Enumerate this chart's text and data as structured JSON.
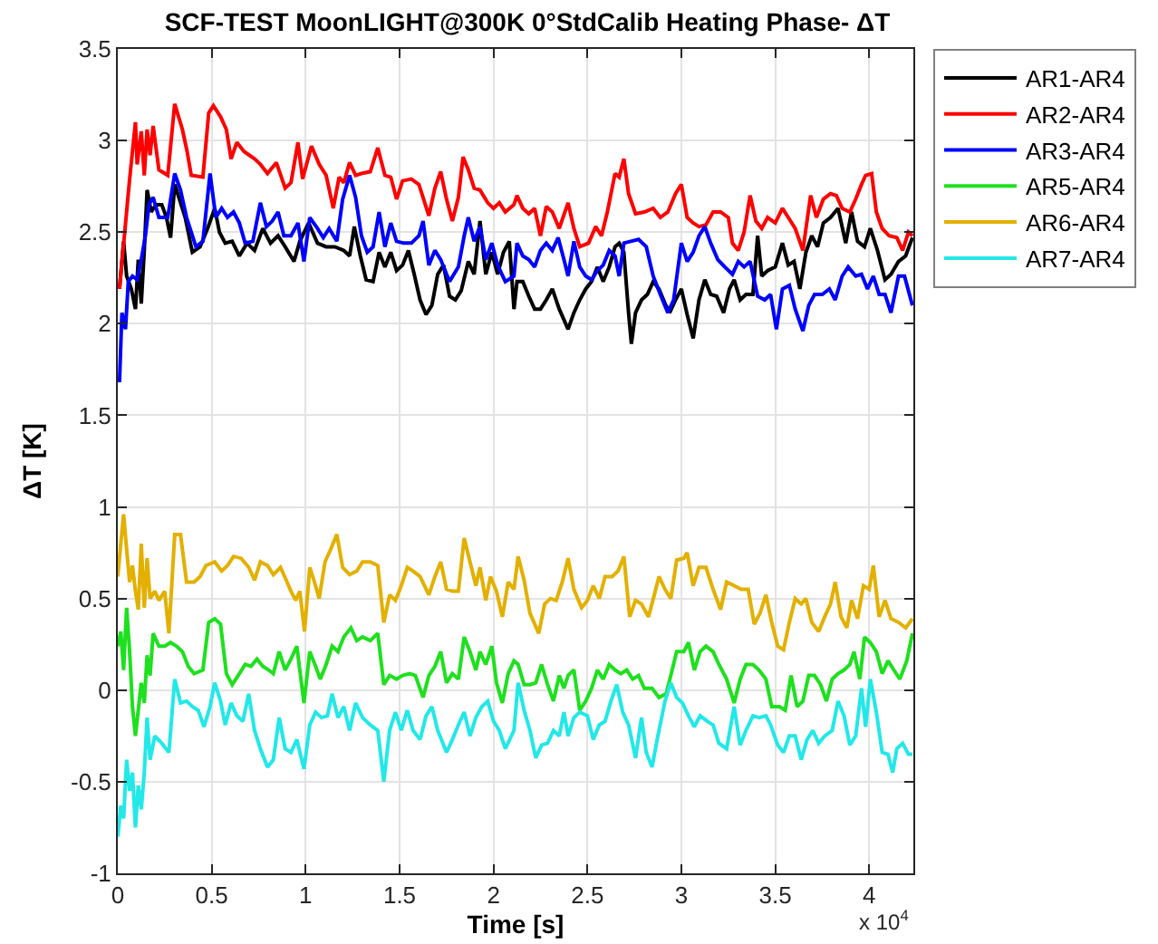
{
  "chart_data": {
    "type": "line",
    "title": "SCF-TEST MoonLIGHT@300K 0°StdCalib Heating Phase- ΔT",
    "xlabel": "Time [s]",
    "ylabel": "ΔT [K]",
    "annotations": [
      "x 10$^{4}$"
    ],
    "xlim": [
      0,
      4.235
    ],
    "ylim": [
      -1,
      3.5
    ],
    "xticks": [
      0,
      0.5,
      1,
      1.5,
      2,
      2.5,
      3,
      3.5,
      4
    ],
    "yticks": [
      -1,
      -0.5,
      0,
      0.5,
      1,
      1.5,
      2,
      2.5,
      3,
      3.5
    ],
    "grid": true,
    "legend": "top right",
    "line_style": "solid",
    "series": [
      {
        "name": "AR1-AR4",
        "color": "#000000",
        "x": [
          0.009,
          0.031,
          0.047,
          0.072,
          0.094,
          0.109,
          0.125,
          0.141,
          0.156,
          0.178,
          0.203,
          0.234,
          0.259,
          0.281,
          0.303,
          0.328,
          0.359,
          0.397,
          0.438,
          0.478,
          0.516,
          0.541,
          0.572,
          0.609,
          0.647,
          0.688,
          0.728,
          0.772,
          0.813,
          0.853,
          0.891,
          0.938,
          0.969,
          1.016,
          1.063,
          1.109,
          1.156,
          1.203,
          1.234,
          1.259,
          1.291,
          1.322,
          1.359,
          1.391,
          1.422,
          1.453,
          1.484,
          1.516,
          1.547,
          1.578,
          1.609,
          1.641,
          1.672,
          1.703,
          1.734,
          1.766,
          1.797,
          1.828,
          1.866,
          1.897,
          1.928,
          1.959,
          1.991,
          2.022,
          2.053,
          2.084,
          2.109,
          2.125,
          2.156,
          2.188,
          2.219,
          2.25,
          2.281,
          2.313,
          2.35,
          2.397,
          2.428,
          2.459,
          2.491,
          2.522,
          2.553,
          2.584,
          2.616,
          2.647,
          2.669,
          2.694,
          2.719,
          2.734,
          2.756,
          2.788,
          2.819,
          2.85,
          2.881,
          2.913,
          2.938,
          2.969,
          3,
          3.031,
          3.063,
          3.094,
          3.125,
          3.156,
          3.188,
          3.225,
          3.256,
          3.281,
          3.313,
          3.344,
          3.381,
          3.406,
          3.428,
          3.459,
          3.5,
          3.538,
          3.569,
          3.6,
          3.631,
          3.663,
          3.694,
          3.725,
          3.756,
          3.794,
          3.834,
          3.875,
          3.906,
          3.938,
          3.975,
          4.006,
          4.044,
          4.084,
          4.116,
          4.156,
          4.194,
          4.23
        ],
        "values": [
          2.19,
          2.45,
          2.26,
          2.19,
          2.08,
          2.35,
          2.11,
          2.4,
          2.73,
          2.61,
          2.65,
          2.65,
          2.58,
          2.47,
          2.76,
          2.68,
          2.58,
          2.39,
          2.42,
          2.52,
          2.63,
          2.5,
          2.44,
          2.45,
          2.37,
          2.44,
          2.4,
          2.52,
          2.44,
          2.48,
          2.42,
          2.34,
          2.45,
          2.55,
          2.44,
          2.42,
          2.42,
          2.4,
          2.37,
          2.53,
          2.37,
          2.24,
          2.23,
          2.39,
          2.31,
          2.39,
          2.29,
          2.32,
          2.4,
          2.27,
          2.13,
          2.05,
          2.1,
          2.27,
          2.32,
          2.15,
          2.13,
          2.18,
          2.34,
          2.27,
          2.56,
          2.27,
          2.39,
          2.27,
          2.39,
          2.45,
          2.08,
          2.23,
          2.23,
          2.15,
          2.08,
          2.08,
          2.13,
          2.19,
          2.08,
          1.97,
          2.06,
          2.13,
          2.19,
          2.23,
          2.31,
          2.23,
          2.31,
          2.42,
          2.44,
          2.39,
          2.06,
          1.89,
          2.06,
          2.13,
          2.16,
          2.23,
          2.19,
          2.11,
          2.06,
          2.13,
          2.19,
          2.05,
          1.92,
          2.13,
          2.24,
          2.16,
          2.15,
          2.06,
          2.19,
          2.24,
          2.13,
          2.16,
          2.16,
          2.48,
          2.26,
          2.29,
          2.31,
          2.44,
          2.32,
          2.34,
          2.19,
          2.39,
          2.48,
          2.42,
          2.55,
          2.58,
          2.63,
          2.44,
          2.61,
          2.45,
          2.42,
          2.52,
          2.4,
          2.24,
          2.27,
          2.34,
          2.37,
          2.47
        ]
      },
      {
        "name": "AR2-AR4",
        "color": "#ff0000",
        "x": [
          0.009,
          0.063,
          0.094,
          0.103,
          0.125,
          0.141,
          0.156,
          0.172,
          0.188,
          0.219,
          0.266,
          0.303,
          0.344,
          0.369,
          0.391,
          0.453,
          0.484,
          0.509,
          0.547,
          0.578,
          0.603,
          0.634,
          0.672,
          0.728,
          0.759,
          0.797,
          0.844,
          0.891,
          0.922,
          0.959,
          0.984,
          1.031,
          1.072,
          1.109,
          1.147,
          1.178,
          1.203,
          1.234,
          1.266,
          1.297,
          1.344,
          1.384,
          1.422,
          1.453,
          1.484,
          1.516,
          1.563,
          1.603,
          1.656,
          1.688,
          1.719,
          1.75,
          1.781,
          1.813,
          1.838,
          1.866,
          1.897,
          1.928,
          1.969,
          2,
          2.031,
          2.063,
          2.109,
          2.125,
          2.156,
          2.188,
          2.219,
          2.25,
          2.281,
          2.313,
          2.35,
          2.397,
          2.428,
          2.459,
          2.506,
          2.544,
          2.575,
          2.606,
          2.647,
          2.669,
          2.694,
          2.719,
          2.756,
          2.803,
          2.85,
          2.888,
          2.928,
          2.969,
          3,
          3.031,
          3.063,
          3.094,
          3.131,
          3.169,
          3.209,
          3.25,
          3.272,
          3.303,
          3.334,
          3.366,
          3.397,
          3.428,
          3.459,
          3.5,
          3.538,
          3.569,
          3.606,
          3.647,
          3.688,
          3.719,
          3.756,
          3.794,
          3.825,
          3.856,
          3.897,
          3.928,
          3.959,
          3.981,
          4.013,
          4.038,
          4.069,
          4.106,
          4.147,
          4.178,
          4.209,
          4.23
        ],
        "values": [
          2.19,
          2.79,
          3.1,
          2.87,
          3.05,
          2.81,
          3.06,
          2.92,
          3.08,
          2.84,
          2.81,
          3.2,
          3.06,
          2.94,
          2.81,
          2.8,
          3.15,
          3.19,
          3.13,
          3.06,
          2.9,
          2.99,
          2.94,
          2.9,
          2.87,
          2.82,
          2.88,
          2.74,
          2.77,
          2.99,
          2.79,
          2.97,
          2.87,
          2.81,
          2.63,
          2.8,
          2.77,
          2.88,
          2.81,
          2.82,
          2.83,
          2.96,
          2.81,
          2.8,
          2.68,
          2.78,
          2.79,
          2.76,
          2.59,
          2.74,
          2.83,
          2.68,
          2.56,
          2.69,
          2.91,
          2.84,
          2.74,
          2.73,
          2.66,
          2.63,
          2.66,
          2.61,
          2.65,
          2.7,
          2.63,
          2.6,
          2.63,
          2.48,
          2.64,
          2.61,
          2.52,
          2.66,
          2.52,
          2.42,
          2.44,
          2.53,
          2.48,
          2.61,
          2.82,
          2.8,
          2.9,
          2.71,
          2.6,
          2.61,
          2.63,
          2.58,
          2.61,
          2.71,
          2.76,
          2.58,
          2.55,
          2.53,
          2.54,
          2.61,
          2.61,
          2.58,
          2.44,
          2.4,
          2.5,
          2.7,
          2.56,
          2.52,
          2.58,
          2.55,
          2.63,
          2.58,
          2.52,
          2.4,
          2.7,
          2.58,
          2.68,
          2.71,
          2.7,
          2.63,
          2.61,
          2.68,
          2.76,
          2.81,
          2.82,
          2.61,
          2.52,
          2.48,
          2.47,
          2.4,
          2.5,
          2.48
        ]
      },
      {
        "name": "AR3-AR4",
        "color": "#0000ff",
        "x": [
          0.009,
          0.022,
          0.041,
          0.056,
          0.078,
          0.103,
          0.125,
          0.147,
          0.166,
          0.188,
          0.219,
          0.266,
          0.303,
          0.334,
          0.366,
          0.416,
          0.453,
          0.491,
          0.522,
          0.553,
          0.584,
          0.616,
          0.647,
          0.678,
          0.719,
          0.759,
          0.791,
          0.822,
          0.853,
          0.884,
          0.922,
          0.959,
          0.991,
          1.022,
          1.063,
          1.094,
          1.125,
          1.166,
          1.197,
          1.234,
          1.266,
          1.297,
          1.328,
          1.359,
          1.391,
          1.422,
          1.453,
          1.484,
          1.522,
          1.563,
          1.603,
          1.625,
          1.656,
          1.688,
          1.719,
          1.766,
          1.813,
          1.844,
          1.866,
          1.897,
          1.928,
          1.959,
          1.991,
          2.022,
          2.063,
          2.109,
          2.125,
          2.156,
          2.188,
          2.219,
          2.25,
          2.281,
          2.313,
          2.344,
          2.375,
          2.397,
          2.428,
          2.459,
          2.491,
          2.522,
          2.553,
          2.584,
          2.616,
          2.647,
          2.669,
          2.694,
          2.731,
          2.772,
          2.813,
          2.85,
          2.888,
          2.928,
          2.959,
          3,
          3.031,
          3.063,
          3.094,
          3.125,
          3.156,
          3.194,
          3.231,
          3.272,
          3.303,
          3.334,
          3.366,
          3.406,
          3.444,
          3.475,
          3.506,
          3.538,
          3.575,
          3.606,
          3.647,
          3.678,
          3.709,
          3.75,
          3.788,
          3.819,
          3.856,
          3.888,
          3.928,
          3.959,
          3.991,
          4.022,
          4.053,
          4.084,
          4.116,
          4.156,
          4.188,
          4.23
        ],
        "values": [
          1.68,
          2.06,
          1.97,
          2.23,
          2.26,
          2.24,
          2.35,
          2.48,
          2.65,
          2.69,
          2.58,
          2.58,
          2.82,
          2.73,
          2.58,
          2.42,
          2.45,
          2.82,
          2.58,
          2.63,
          2.58,
          2.61,
          2.55,
          2.44,
          2.45,
          2.66,
          2.53,
          2.56,
          2.61,
          2.48,
          2.48,
          2.55,
          2.34,
          2.58,
          2.52,
          2.47,
          2.52,
          2.45,
          2.68,
          2.81,
          2.69,
          2.48,
          2.39,
          2.42,
          2.61,
          2.42,
          2.55,
          2.45,
          2.44,
          2.44,
          2.48,
          2.56,
          2.32,
          2.4,
          2.35,
          2.23,
          2.31,
          2.48,
          2.58,
          2.45,
          2.53,
          2.35,
          2.44,
          2.32,
          2.23,
          2.26,
          2.44,
          2.37,
          2.35,
          2.31,
          2.4,
          2.44,
          2.4,
          2.47,
          2.35,
          2.26,
          2.45,
          2.31,
          2.26,
          2.24,
          2.29,
          2.32,
          2.4,
          2.37,
          2.26,
          2.44,
          2.45,
          2.46,
          2.42,
          2.26,
          2.16,
          2.06,
          2.13,
          2.44,
          2.34,
          2.39,
          2.48,
          2.53,
          2.44,
          2.35,
          2.31,
          2.27,
          2.34,
          2.31,
          2.34,
          2.15,
          2.13,
          2.16,
          1.97,
          2.19,
          2.21,
          2.08,
          1.96,
          2.1,
          2.16,
          2.16,
          2.19,
          2.13,
          2.26,
          2.31,
          2.26,
          2.27,
          2.19,
          2.26,
          2.16,
          2.16,
          2.06,
          2.26,
          2.26,
          2.1
        ]
      },
      {
        "name": "AR5-AR4",
        "color": "#1ee01e",
        "x": [
          0,
          0.016,
          0.031,
          0.047,
          0.063,
          0.078,
          0.094,
          0.109,
          0.125,
          0.141,
          0.156,
          0.172,
          0.188,
          0.219,
          0.25,
          0.281,
          0.313,
          0.344,
          0.375,
          0.406,
          0.453,
          0.484,
          0.516,
          0.547,
          0.578,
          0.609,
          0.647,
          0.678,
          0.709,
          0.741,
          0.772,
          0.803,
          0.828,
          0.859,
          0.891,
          0.922,
          0.953,
          0.991,
          1.022,
          1.053,
          1.078,
          1.109,
          1.141,
          1.172,
          1.203,
          1.241,
          1.272,
          1.303,
          1.344,
          1.384,
          1.416,
          1.447,
          1.484,
          1.516,
          1.553,
          1.584,
          1.625,
          1.656,
          1.688,
          1.719,
          1.75,
          1.781,
          1.813,
          1.844,
          1.875,
          1.906,
          1.928,
          1.959,
          1.991,
          2.016,
          2.047,
          2.078,
          2.109,
          2.131,
          2.163,
          2.194,
          2.225,
          2.256,
          2.288,
          2.319,
          2.35,
          2.375,
          2.397,
          2.428,
          2.459,
          2.491,
          2.522,
          2.553,
          2.584,
          2.616,
          2.647,
          2.678,
          2.709,
          2.741,
          2.772,
          2.803,
          2.844,
          2.881,
          2.919,
          2.944,
          2.975,
          3.013,
          3.038,
          3.069,
          3.1,
          3.131,
          3.169,
          3.2,
          3.241,
          3.281,
          3.313,
          3.344,
          3.381,
          3.413,
          3.45,
          3.481,
          3.522,
          3.553,
          3.584,
          3.616,
          3.647,
          3.678,
          3.709,
          3.741,
          3.772,
          3.803,
          3.834,
          3.866,
          3.897,
          3.919,
          3.95,
          3.975,
          4.006,
          4.038,
          4.069,
          4.1,
          4.131,
          4.163,
          4.2,
          4.23
        ],
        "values": [
          0.24,
          0.32,
          0.11,
          0.45,
          0.21,
          -0.09,
          -0.25,
          -0.11,
          0.04,
          -0.07,
          0.19,
          0.08,
          0.31,
          0.24,
          0.24,
          0.26,
          0.24,
          0.21,
          0.13,
          0.09,
          0.11,
          0.37,
          0.39,
          0.36,
          0.09,
          0.03,
          0.09,
          0.14,
          0.13,
          0.17,
          0.13,
          0.11,
          0.09,
          0.21,
          0.11,
          0.17,
          0.24,
          -0.07,
          0.21,
          0.13,
          0.06,
          0.14,
          0.24,
          0.21,
          0.29,
          0.34,
          0.27,
          0.29,
          0.27,
          0.31,
          0.03,
          0.08,
          0.06,
          0.08,
          0.09,
          0.08,
          -0.04,
          0.08,
          0.13,
          0.21,
          0.04,
          0.09,
          0.06,
          0.29,
          0.21,
          0.11,
          0.21,
          0.14,
          0.24,
          0.04,
          -0.07,
          0.09,
          0.16,
          0.14,
          0.03,
          0.03,
          0.04,
          0.14,
          0.03,
          -0.06,
          0.08,
          0.01,
          0.08,
          0.11,
          -0.11,
          -0.06,
          0.01,
          0.11,
          0.06,
          0.14,
          0.11,
          0.09,
          0.11,
          0.06,
          0.08,
          0.01,
          0.01,
          -0.04,
          -0.02,
          0.08,
          0.21,
          0.21,
          0.26,
          0.11,
          0.21,
          0.24,
          0.21,
          0.14,
          0.06,
          -0.07,
          0.06,
          0.14,
          0.14,
          0.11,
          0.06,
          -0.09,
          -0.09,
          -0.11,
          0.08,
          -0.09,
          -0.06,
          0.08,
          0.08,
          0.03,
          -0.06,
          0.06,
          0.09,
          0.11,
          0.14,
          0.21,
          0.06,
          0.29,
          0.26,
          0.21,
          0.09,
          0.16,
          0.11,
          0.06,
          0.16,
          0.31
        ]
      },
      {
        "name": "AR6-AR4",
        "color": "#e3b000",
        "x": [
          0,
          0.016,
          0.031,
          0.047,
          0.063,
          0.078,
          0.094,
          0.109,
          0.125,
          0.141,
          0.156,
          0.172,
          0.197,
          0.219,
          0.25,
          0.272,
          0.303,
          0.334,
          0.366,
          0.406,
          0.438,
          0.469,
          0.516,
          0.553,
          0.584,
          0.616,
          0.656,
          0.697,
          0.728,
          0.759,
          0.797,
          0.828,
          0.866,
          0.897,
          0.922,
          0.947,
          0.969,
          0.994,
          1.022,
          1.047,
          1.072,
          1.103,
          1.134,
          1.166,
          1.197,
          1.234,
          1.272,
          1.303,
          1.344,
          1.384,
          1.416,
          1.447,
          1.478,
          1.509,
          1.541,
          1.572,
          1.609,
          1.656,
          1.688,
          1.719,
          1.75,
          1.781,
          1.813,
          1.844,
          1.875,
          1.906,
          1.928,
          1.959,
          1.984,
          2.016,
          2.047,
          2.078,
          2.109,
          2.131,
          2.163,
          2.194,
          2.241,
          2.272,
          2.303,
          2.334,
          2.366,
          2.397,
          2.428,
          2.469,
          2.5,
          2.531,
          2.563,
          2.594,
          2.631,
          2.663,
          2.694,
          2.725,
          2.756,
          2.788,
          2.825,
          2.856,
          2.881,
          2.913,
          2.944,
          2.975,
          3.013,
          3.031,
          3.063,
          3.094,
          3.131,
          3.169,
          3.209,
          3.241,
          3.281,
          3.319,
          3.356,
          3.388,
          3.419,
          3.45,
          3.481,
          3.513,
          3.544,
          3.575,
          3.606,
          3.638,
          3.663,
          3.694,
          3.731,
          3.763,
          3.794,
          3.819,
          3.85,
          3.881,
          3.906,
          3.938,
          3.969,
          4,
          4.022,
          4.053,
          4.084,
          4.116,
          4.156,
          4.194,
          4.23
        ],
        "values": [
          0.62,
          0.8,
          0.96,
          0.77,
          0.59,
          0.68,
          0.54,
          0.44,
          0.8,
          0.45,
          0.72,
          0.5,
          0.54,
          0.49,
          0.54,
          0.31,
          0.85,
          0.85,
          0.59,
          0.59,
          0.62,
          0.68,
          0.7,
          0.65,
          0.68,
          0.73,
          0.72,
          0.67,
          0.6,
          0.7,
          0.68,
          0.63,
          0.67,
          0.6,
          0.54,
          0.49,
          0.54,
          0.32,
          0.67,
          0.59,
          0.5,
          0.7,
          0.77,
          0.85,
          0.67,
          0.63,
          0.65,
          0.7,
          0.7,
          0.68,
          0.37,
          0.52,
          0.49,
          0.57,
          0.67,
          0.65,
          0.62,
          0.52,
          0.62,
          0.7,
          0.55,
          0.54,
          0.54,
          0.83,
          0.7,
          0.57,
          0.67,
          0.49,
          0.62,
          0.54,
          0.4,
          0.59,
          0.55,
          0.73,
          0.6,
          0.42,
          0.31,
          0.47,
          0.5,
          0.49,
          0.59,
          0.72,
          0.55,
          0.45,
          0.49,
          0.57,
          0.5,
          0.62,
          0.62,
          0.65,
          0.73,
          0.4,
          0.49,
          0.47,
          0.4,
          0.52,
          0.62,
          0.55,
          0.5,
          0.71,
          0.72,
          0.75,
          0.57,
          0.67,
          0.67,
          0.55,
          0.44,
          0.59,
          0.57,
          0.55,
          0.55,
          0.36,
          0.42,
          0.52,
          0.37,
          0.24,
          0.22,
          0.37,
          0.5,
          0.47,
          0.5,
          0.37,
          0.32,
          0.4,
          0.47,
          0.59,
          0.4,
          0.34,
          0.49,
          0.39,
          0.57,
          0.55,
          0.68,
          0.4,
          0.49,
          0.39,
          0.37,
          0.34,
          0.39
        ]
      },
      {
        "name": "AR7-AR4",
        "color": "#22e8e8",
        "x": [
          0,
          0.016,
          0.031,
          0.047,
          0.063,
          0.078,
          0.094,
          0.109,
          0.125,
          0.141,
          0.156,
          0.172,
          0.197,
          0.234,
          0.272,
          0.303,
          0.334,
          0.366,
          0.397,
          0.428,
          0.459,
          0.491,
          0.516,
          0.547,
          0.572,
          0.603,
          0.634,
          0.666,
          0.697,
          0.728,
          0.759,
          0.797,
          0.828,
          0.859,
          0.891,
          0.922,
          0.953,
          0.991,
          1.022,
          1.053,
          1.084,
          1.116,
          1.141,
          1.172,
          1.203,
          1.234,
          1.266,
          1.303,
          1.344,
          1.384,
          1.416,
          1.447,
          1.478,
          1.509,
          1.541,
          1.572,
          1.609,
          1.641,
          1.672,
          1.703,
          1.75,
          1.781,
          1.813,
          1.844,
          1.875,
          1.906,
          1.938,
          1.969,
          2,
          2.031,
          2.063,
          2.109,
          2.131,
          2.163,
          2.194,
          2.225,
          2.256,
          2.288,
          2.319,
          2.35,
          2.375,
          2.397,
          2.428,
          2.459,
          2.5,
          2.531,
          2.563,
          2.594,
          2.625,
          2.656,
          2.688,
          2.719,
          2.756,
          2.788,
          2.813,
          2.844,
          2.875,
          2.913,
          2.944,
          2.975,
          3.006,
          3.038,
          3.069,
          3.1,
          3.138,
          3.169,
          3.2,
          3.241,
          3.281,
          3.313,
          3.344,
          3.381,
          3.413,
          3.45,
          3.475,
          3.513,
          3.544,
          3.575,
          3.606,
          3.638,
          3.669,
          3.7,
          3.731,
          3.763,
          3.803,
          3.834,
          3.866,
          3.897,
          3.928,
          3.959,
          3.981,
          4.006,
          4.038,
          4.069,
          4.1,
          4.125,
          4.147,
          4.178,
          4.209,
          4.23
        ],
        "values": [
          -0.8,
          -0.63,
          -0.7,
          -0.38,
          -0.55,
          -0.45,
          -0.75,
          -0.52,
          -0.65,
          -0.45,
          -0.15,
          -0.38,
          -0.25,
          -0.29,
          -0.34,
          0.06,
          -0.07,
          -0.06,
          -0.09,
          -0.11,
          -0.2,
          -0.09,
          0.04,
          -0.06,
          -0.19,
          -0.07,
          -0.14,
          -0.17,
          -0.02,
          -0.22,
          -0.32,
          -0.42,
          -0.38,
          -0.15,
          -0.32,
          -0.34,
          -0.27,
          -0.43,
          -0.19,
          -0.12,
          -0.15,
          -0.14,
          -0.02,
          -0.15,
          -0.09,
          -0.22,
          -0.07,
          -0.15,
          -0.19,
          -0.22,
          -0.5,
          -0.22,
          -0.12,
          -0.22,
          -0.11,
          -0.22,
          -0.27,
          -0.14,
          -0.09,
          -0.22,
          -0.34,
          -0.27,
          -0.19,
          -0.12,
          -0.25,
          -0.15,
          -0.09,
          -0.06,
          -0.17,
          -0.22,
          -0.32,
          -0.22,
          0.04,
          -0.11,
          -0.22,
          -0.37,
          -0.3,
          -0.29,
          -0.22,
          -0.25,
          -0.12,
          -0.25,
          -0.15,
          -0.12,
          -0.14,
          -0.27,
          -0.19,
          -0.17,
          -0.06,
          0.03,
          -0.12,
          -0.19,
          -0.37,
          -0.15,
          -0.34,
          -0.42,
          -0.25,
          -0.06,
          0.04,
          -0.04,
          -0.07,
          -0.14,
          -0.2,
          -0.14,
          -0.17,
          -0.19,
          -0.29,
          -0.32,
          -0.09,
          -0.3,
          -0.22,
          -0.14,
          -0.15,
          -0.14,
          -0.19,
          -0.3,
          -0.34,
          -0.25,
          -0.25,
          -0.38,
          -0.27,
          -0.22,
          -0.29,
          -0.25,
          -0.22,
          -0.06,
          -0.14,
          -0.3,
          -0.25,
          0.01,
          -0.2,
          0.06,
          -0.12,
          -0.34,
          -0.35,
          -0.45,
          -0.32,
          -0.29,
          -0.35,
          -0.35
        ]
      }
    ]
  }
}
